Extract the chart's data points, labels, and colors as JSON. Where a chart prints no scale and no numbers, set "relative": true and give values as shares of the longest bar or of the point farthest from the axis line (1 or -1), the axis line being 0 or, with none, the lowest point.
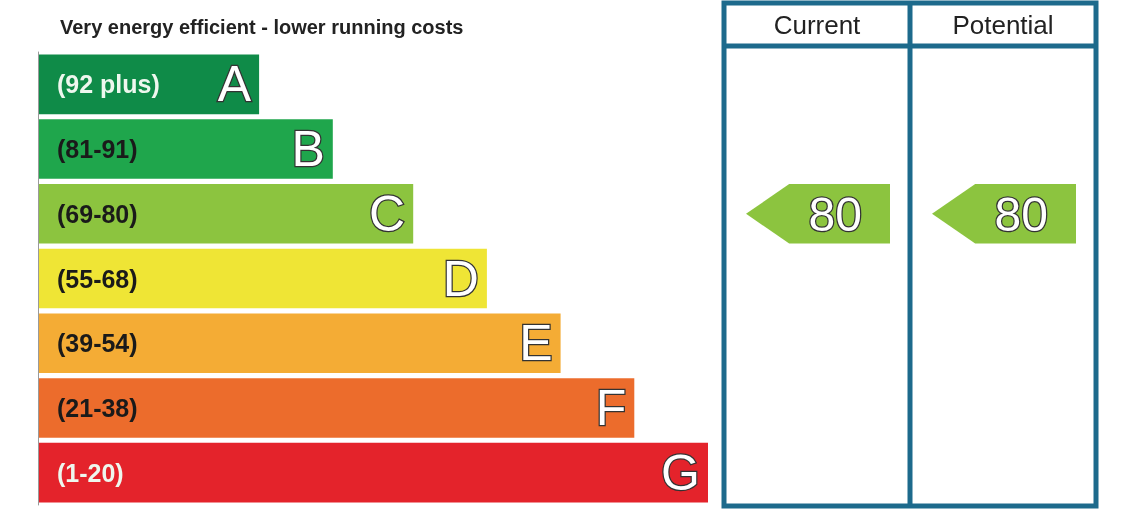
{
  "chart_data": {
    "type": "bar",
    "orientation": "horizontal",
    "relative": true,
    "title": "Very energy efficient - lower running costs",
    "categories": [
      "(92 plus)",
      "(81-91)",
      "(69-80)",
      "(55-68)",
      "(39-54)",
      "(21-38)",
      "(1-20)"
    ],
    "values": [
      0.33,
      0.44,
      0.56,
      0.67,
      0.78,
      0.89,
      1
    ],
    "colors": [
      "#0f8b48",
      "#1fa64c",
      "#8cc43f",
      "#efe535",
      "#f4ac35",
      "#ec6c2c",
      "#e4232b"
    ],
    "annotations": [
      {
        "text": "A",
        "x": 0.33,
        "y": "(92 plus)"
      },
      {
        "text": "B",
        "x": 0.44,
        "y": "(81-91)"
      },
      {
        "text": "C",
        "x": 0.56,
        "y": "(69-80)"
      },
      {
        "text": "D",
        "x": 0.67,
        "y": "(55-68)"
      },
      {
        "text": "E",
        "x": 0.78,
        "y": "(39-54)"
      },
      {
        "text": "F",
        "x": 0.89,
        "y": "(21-38)"
      },
      {
        "text": "G",
        "x": 1,
        "y": "(1-20)"
      },
      "Current",
      "Potential",
      "80",
      "80"
    ]
  }
}
